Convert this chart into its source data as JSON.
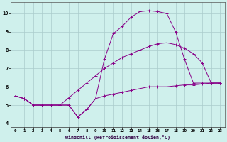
{
  "xlabel": "Windchill (Refroidissement éolien,°C)",
  "bg_color": "#cff0ec",
  "grid_color": "#aacccc",
  "line_color": "#880088",
  "xlim": [
    -0.5,
    23.5
  ],
  "ylim": [
    3.8,
    10.6
  ],
  "yticks": [
    4,
    5,
    6,
    7,
    8,
    9,
    10
  ],
  "xticks": [
    0,
    1,
    2,
    3,
    4,
    5,
    6,
    7,
    8,
    9,
    10,
    11,
    12,
    13,
    14,
    15,
    16,
    17,
    18,
    19,
    20,
    21,
    22,
    23
  ],
  "s1_x": [
    0,
    1,
    2,
    3,
    4,
    5,
    6,
    7,
    8,
    9,
    10,
    11,
    12,
    13,
    14,
    15,
    16,
    17,
    18,
    19,
    20,
    21,
    22,
    23
  ],
  "s1_y": [
    5.5,
    5.35,
    5.0,
    5.0,
    5.0,
    5.0,
    5.0,
    4.35,
    4.75,
    5.35,
    5.5,
    5.6,
    5.7,
    5.8,
    5.9,
    6.0,
    6.0,
    6.0,
    6.05,
    6.1,
    6.1,
    6.15,
    6.2,
    6.2
  ],
  "s2_x": [
    0,
    1,
    2,
    3,
    4,
    5,
    6,
    7,
    8,
    9,
    10,
    11,
    12,
    13,
    14,
    15,
    16,
    17,
    18,
    19,
    20,
    21,
    22,
    23
  ],
  "s2_y": [
    5.5,
    5.35,
    5.0,
    5.0,
    5.0,
    5.0,
    5.4,
    5.8,
    6.2,
    6.6,
    7.0,
    7.3,
    7.6,
    7.8,
    8.0,
    8.2,
    8.35,
    8.4,
    8.3,
    8.1,
    7.8,
    7.3,
    6.2,
    6.2
  ],
  "s3_x": [
    0,
    1,
    2,
    3,
    4,
    5,
    6,
    7,
    8,
    9,
    10,
    11,
    12,
    13,
    14,
    15,
    16,
    17,
    18,
    19,
    20,
    21,
    22,
    23
  ],
  "s3_y": [
    5.5,
    5.35,
    5.0,
    5.0,
    5.0,
    5.0,
    5.0,
    4.35,
    4.75,
    5.35,
    7.5,
    8.9,
    9.3,
    9.8,
    10.1,
    10.15,
    10.1,
    10.0,
    9.0,
    7.5,
    6.2,
    6.2,
    6.2,
    6.2
  ]
}
